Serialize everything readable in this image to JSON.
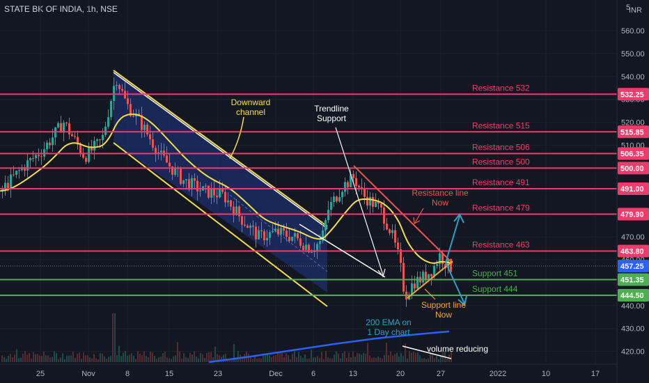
{
  "header": {
    "title": "STATE BK OF INDIA, 1h, NSE"
  },
  "currency": {
    "top": "5",
    "unit": "INR"
  },
  "colors": {
    "background": "#131722",
    "resistance": "#f23a6d",
    "support": "#4caf50",
    "candle_up": "#26a69a",
    "candle_down": "#ef5350",
    "ema": "#f5e042",
    "channel": "#f5e042",
    "channel_fill": "#1e2f6b",
    "trendline": "#ffffff",
    "resistance_line_now": "#ef5350",
    "support_line_now": "#f5a623",
    "ema200": "#2962ff",
    "projection": "#2aa3c8",
    "current_price": "#2962ff"
  },
  "chart_data": {
    "type": "line",
    "title": "STATE BK OF INDIA, 1h, NSE",
    "ylim": [
      415,
      565
    ],
    "yticks": [
      420,
      430,
      440,
      450,
      460,
      470,
      480,
      490,
      500,
      510,
      520,
      530,
      540,
      550,
      560
    ],
    "x_ticks": [
      "25",
      "Nov",
      "8",
      "15",
      "23",
      "Dec",
      "6",
      "13",
      "20",
      "27",
      "2022",
      "10",
      "17"
    ],
    "levels": [
      {
        "name": "Resistance 532",
        "price_label": "532.25",
        "value": 532.25,
        "kind": "resistance"
      },
      {
        "name": "Resistance 515",
        "price_label": "515.85",
        "value": 515.85,
        "kind": "resistance"
      },
      {
        "name": "Resistance 506",
        "price_label": "506.35",
        "value": 506.35,
        "kind": "resistance"
      },
      {
        "name": "Resistance 500",
        "price_label": "500.00",
        "value": 500.0,
        "kind": "resistance"
      },
      {
        "name": "Resistance 491",
        "price_label": "491.00",
        "value": 491.0,
        "kind": "resistance"
      },
      {
        "name": "Resistance 479",
        "price_label": "479.90",
        "value": 479.9,
        "kind": "resistance"
      },
      {
        "name": "Resistance 463",
        "price_label": "463.80",
        "value": 463.8,
        "kind": "resistance"
      },
      {
        "name": "Support 451",
        "price_label": "451.35",
        "value": 451.35,
        "kind": "support"
      },
      {
        "name": "Support 444",
        "price_label": "444.50",
        "value": 444.5,
        "kind": "support"
      }
    ],
    "current_price": {
      "label": "457.25",
      "value": 457.25
    },
    "annotations": {
      "downward_channel": "Downward\nchannel",
      "trendline_support": "Trendline\nSupport",
      "resistance_line_now": "Resistance line\nNow",
      "support_line_now": "Support line\nNow",
      "ema_200": "200 EMA on\n1 Day chart",
      "volume": "volume reducing"
    }
  }
}
